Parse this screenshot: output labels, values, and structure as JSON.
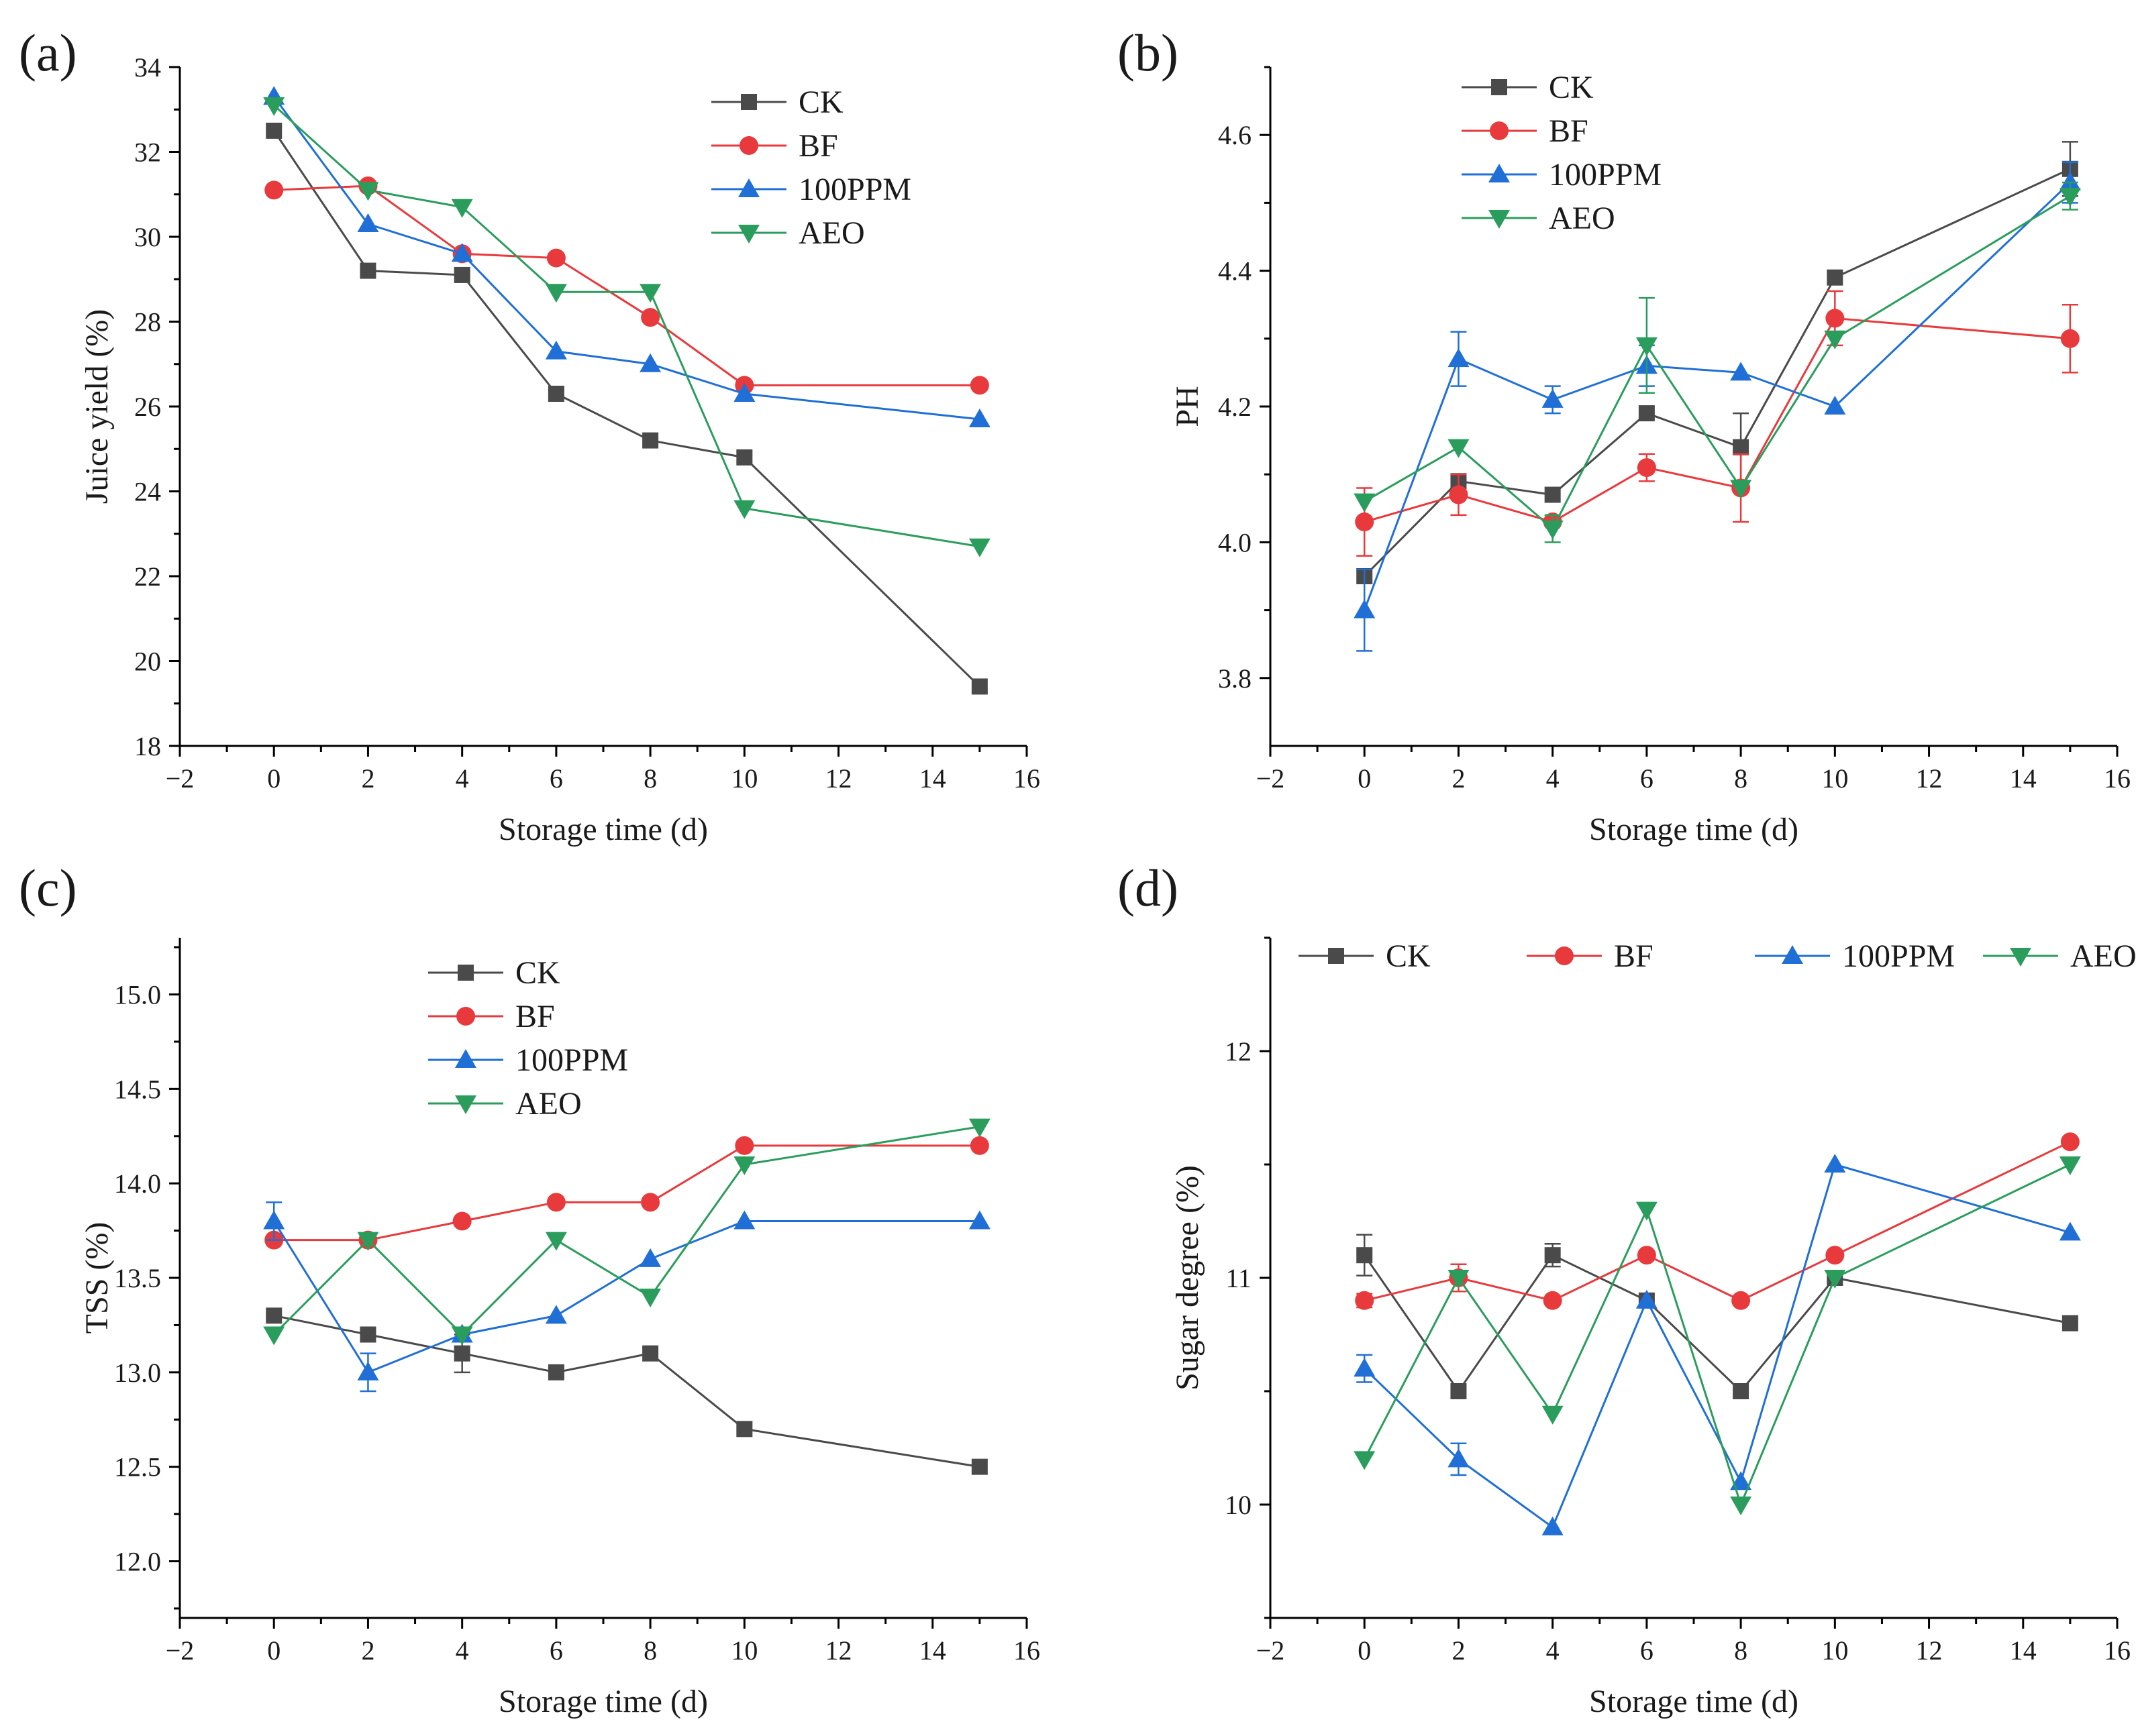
{
  "colors": {
    "CK": "#4a4a4a",
    "BF": "#e8393c",
    "100PPM": "#1f6fd6",
    "AEO": "#2a9d5c"
  },
  "chart_data": [
    {
      "type": "line",
      "panel_label": "(a)",
      "xlabel": "Storage time (d)",
      "ylabel": "Juice yield (%)",
      "xlim": [
        -2,
        16
      ],
      "ylim": [
        18,
        34
      ],
      "xticks": [
        -2,
        0,
        2,
        4,
        6,
        8,
        10,
        12,
        14,
        16
      ],
      "xtick_labels": [
        "−2",
        "0",
        "2",
        "4",
        "6",
        "8",
        "10",
        "12",
        "14",
        "16"
      ],
      "yticks": [
        18,
        20,
        22,
        24,
        26,
        28,
        30,
        32,
        34
      ],
      "ytick_labels": [
        "18",
        "20",
        "22",
        "24",
        "26",
        "28",
        "30",
        "32",
        "34"
      ],
      "legend_position": "top-right",
      "legend_layout": "vertical",
      "x": [
        0,
        2,
        4,
        6,
        8,
        10,
        15
      ],
      "series": [
        {
          "name": "CK",
          "marker": "square",
          "values": [
            32.5,
            29.2,
            29.1,
            26.3,
            25.2,
            24.8,
            19.4
          ],
          "errors": [
            0,
            0,
            0,
            0,
            0,
            0,
            0
          ]
        },
        {
          "name": "BF",
          "marker": "circle",
          "values": [
            31.1,
            31.2,
            29.6,
            29.5,
            28.1,
            26.5,
            26.5
          ],
          "errors": [
            0,
            0,
            0,
            0,
            0,
            0,
            0
          ]
        },
        {
          "name": "100PPM",
          "marker": "triangle-up",
          "values": [
            33.3,
            30.3,
            29.6,
            27.3,
            27.0,
            26.3,
            25.7
          ],
          "errors": [
            0,
            0,
            0,
            0,
            0,
            0,
            0
          ]
        },
        {
          "name": "AEO",
          "marker": "triangle-down",
          "values": [
            33.1,
            31.1,
            30.7,
            28.7,
            28.7,
            23.6,
            22.7
          ],
          "errors": [
            0,
            0,
            0,
            0,
            0,
            0,
            0
          ]
        }
      ]
    },
    {
      "type": "line",
      "panel_label": "(b)",
      "xlabel": "Storage time (d)",
      "ylabel": "PH",
      "xlim": [
        -2,
        16
      ],
      "ylim": [
        3.7,
        4.7
      ],
      "xticks": [
        -2,
        0,
        2,
        4,
        6,
        8,
        10,
        12,
        14,
        16
      ],
      "xtick_labels": [
        "−2",
        "0",
        "2",
        "4",
        "6",
        "8",
        "10",
        "12",
        "14",
        "16"
      ],
      "yticks": [
        3.8,
        4.0,
        4.2,
        4.4,
        4.6
      ],
      "ytick_labels": [
        "3.8",
        "4.0",
        "4.2",
        "4.4",
        "4.6"
      ],
      "legend_position": "top-left",
      "legend_layout": "vertical",
      "x": [
        0,
        2,
        4,
        6,
        8,
        10,
        15
      ],
      "series": [
        {
          "name": "CK",
          "marker": "square",
          "values": [
            3.95,
            4.09,
            4.07,
            4.19,
            4.14,
            4.39,
            4.55
          ],
          "errors": [
            0,
            0,
            0,
            0,
            0.05,
            0,
            0.04
          ]
        },
        {
          "name": "BF",
          "marker": "circle",
          "values": [
            4.03,
            4.07,
            4.03,
            4.11,
            4.08,
            4.33,
            4.3
          ],
          "errors": [
            0.05,
            0.03,
            0,
            0.02,
            0.05,
            0.04,
            0.05
          ]
        },
        {
          "name": "100PPM",
          "marker": "triangle-up",
          "values": [
            3.9,
            4.27,
            4.21,
            4.26,
            4.25,
            4.2,
            4.53
          ],
          "errors": [
            0.06,
            0.04,
            0.02,
            0.03,
            0,
            0,
            0.03
          ]
        },
        {
          "name": "AEO",
          "marker": "triangle-down",
          "values": [
            4.06,
            4.14,
            4.02,
            4.29,
            4.08,
            4.3,
            4.51
          ],
          "errors": [
            0,
            0,
            0.02,
            0.07,
            0,
            0,
            0.02
          ]
        }
      ]
    },
    {
      "type": "line",
      "panel_label": "(c)",
      "xlabel": "Storage time (d)",
      "ylabel": "TSS (%)",
      "xlim": [
        -2,
        16
      ],
      "ylim": [
        11.7,
        15.3
      ],
      "xticks": [
        -2,
        0,
        2,
        4,
        6,
        8,
        10,
        12,
        14,
        16
      ],
      "xtick_labels": [
        "−2",
        "0",
        "2",
        "4",
        "6",
        "8",
        "10",
        "12",
        "14",
        "16"
      ],
      "yticks": [
        12.0,
        12.5,
        13.0,
        13.5,
        14.0,
        14.5,
        15.0
      ],
      "ytick_labels": [
        "12.0",
        "12.5",
        "13.0",
        "13.5",
        "14.0",
        "14.5",
        "15.0"
      ],
      "legend_position": "top-center",
      "legend_layout": "vertical",
      "x": [
        0,
        2,
        4,
        6,
        8,
        10,
        15
      ],
      "series": [
        {
          "name": "CK",
          "marker": "square",
          "values": [
            13.3,
            13.2,
            13.1,
            13.0,
            13.1,
            12.7,
            12.5
          ],
          "errors": [
            0,
            0,
            0.1,
            0,
            0,
            0,
            0
          ]
        },
        {
          "name": "BF",
          "marker": "circle",
          "values": [
            13.7,
            13.7,
            13.8,
            13.9,
            13.9,
            14.2,
            14.2
          ],
          "errors": [
            0,
            0,
            0,
            0,
            0,
            0,
            0
          ]
        },
        {
          "name": "100PPM",
          "marker": "triangle-up",
          "values": [
            13.8,
            13.0,
            13.2,
            13.3,
            13.6,
            13.8,
            13.8
          ],
          "errors": [
            0.1,
            0.1,
            0,
            0,
            0,
            0,
            0
          ]
        },
        {
          "name": "AEO",
          "marker": "triangle-down",
          "values": [
            13.2,
            13.7,
            13.2,
            13.7,
            13.4,
            14.1,
            14.3
          ],
          "errors": [
            0,
            0,
            0,
            0,
            0,
            0,
            0
          ]
        }
      ]
    },
    {
      "type": "line",
      "panel_label": "(d)",
      "xlabel": "Storage time (d)",
      "ylabel": "Sugar degree (%)",
      "xlim": [
        -2,
        16
      ],
      "ylim": [
        9.5,
        12.5
      ],
      "xticks": [
        -2,
        0,
        2,
        4,
        6,
        8,
        10,
        12,
        14,
        16
      ],
      "xtick_labels": [
        "−2",
        "0",
        "2",
        "4",
        "6",
        "8",
        "10",
        "12",
        "14",
        "16"
      ],
      "yticks": [
        10,
        11,
        12
      ],
      "ytick_labels": [
        "10",
        "11",
        "12"
      ],
      "legend_position": "top",
      "legend_layout": "horizontal",
      "x": [
        0,
        2,
        4,
        6,
        8,
        10,
        15
      ],
      "series": [
        {
          "name": "CK",
          "marker": "square",
          "values": [
            11.1,
            10.5,
            11.1,
            10.9,
            10.5,
            11.0,
            10.8
          ],
          "errors": [
            0.09,
            0,
            0.05,
            0,
            0,
            0,
            0
          ]
        },
        {
          "name": "BF",
          "marker": "circle",
          "values": [
            10.9,
            11.0,
            10.9,
            11.1,
            10.9,
            11.1,
            11.6
          ],
          "errors": [
            0.03,
            0.06,
            0,
            0,
            0,
            0,
            0
          ]
        },
        {
          "name": "100PPM",
          "marker": "triangle-up",
          "values": [
            10.6,
            10.2,
            9.9,
            10.9,
            10.1,
            11.5,
            11.2
          ],
          "errors": [
            0.06,
            0.07,
            0,
            0,
            0,
            0,
            0
          ]
        },
        {
          "name": "AEO",
          "marker": "triangle-down",
          "values": [
            10.2,
            11.0,
            10.4,
            11.3,
            10.0,
            11.0,
            11.5
          ],
          "errors": [
            0,
            0,
            0,
            0,
            0,
            0,
            0
          ]
        }
      ]
    }
  ]
}
